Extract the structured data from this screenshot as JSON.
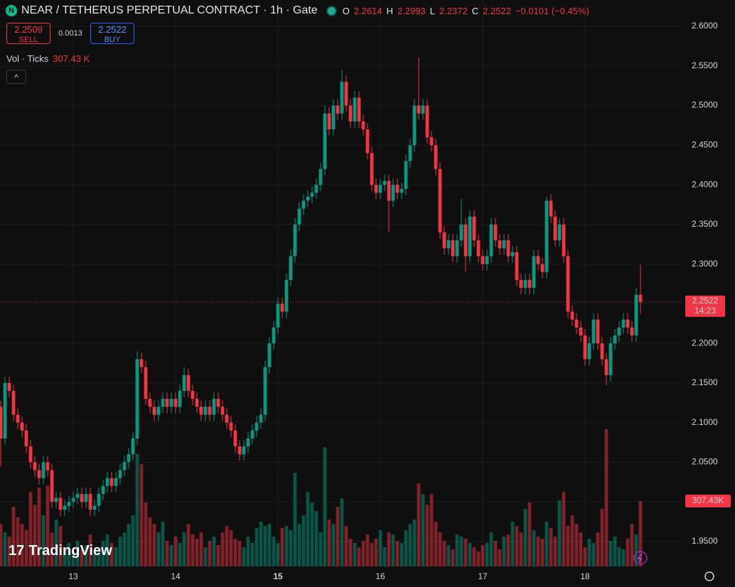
{
  "chart_data": {
    "type": "candlestick",
    "title": "NEAR / TETHERUS PERPETUAL CONTRACT · 1h · Gate",
    "ohlc_keys": [
      "O",
      "H",
      "L",
      "C"
    ],
    "change_label": "−0.0101 (−0.45%)",
    "sell": {
      "price": "2.2509",
      "label": "SELL"
    },
    "spread": "0.0013",
    "buy": {
      "price": "2.2522",
      "label": "BUY"
    },
    "volume_title": "Vol · Ticks",
    "last_volume_label": "307.43 K",
    "last_volume_axis_label": "307.43K",
    "countdown": "14:23",
    "logo": "TradingView",
    "up_color": "#089981",
    "down_color": "#f23645",
    "grid": true,
    "xlim": [
      -0.17,
      159.83
    ],
    "ylim": [
      1.9186,
      2.6332
    ],
    "volume_lim": [
      0,
      2663000
    ],
    "yticks": [
      {
        "value": 2.6,
        "label": "2.6000"
      },
      {
        "value": 2.55,
        "label": "2.5500"
      },
      {
        "value": 2.5,
        "label": "2.5000"
      },
      {
        "value": 2.45,
        "label": "2.4500"
      },
      {
        "value": 2.4,
        "label": "2.4000"
      },
      {
        "value": 2.35,
        "label": "2.3500"
      },
      {
        "value": 2.3,
        "label": "2.3000"
      },
      {
        "value": 2.25,
        "label": "2.2500"
      },
      {
        "value": 2.2,
        "label": "2.2000"
      },
      {
        "value": 2.15,
        "label": "2.1500"
      },
      {
        "value": 2.1,
        "label": "2.1000"
      },
      {
        "value": 2.05,
        "label": "2.0500"
      },
      {
        "value": 2.0,
        "label": "2.0000"
      },
      {
        "value": 1.95,
        "label": "1.9500"
      }
    ],
    "xticks": [
      {
        "value": 17,
        "label": "13"
      },
      {
        "value": 41,
        "label": "14"
      },
      {
        "value": 65,
        "label": "15"
      },
      {
        "value": 89,
        "label": "16"
      },
      {
        "value": 113,
        "label": "17"
      },
      {
        "value": 137,
        "label": "18"
      }
    ],
    "open": [
      2.12,
      2.08,
      2.15,
      2.14,
      2.11,
      2.1,
      2.09,
      2.07,
      2.05,
      2.04,
      2.03,
      2.05,
      2.04,
      2.0,
      2.005,
      1.99,
      1.995,
      2.0,
      2.005,
      2.01,
      2.0,
      2.01,
      1.99,
      1.995,
      2.01,
      2.02,
      2.03,
      2.02,
      2.03,
      2.04,
      2.05,
      2.06,
      2.08,
      2.18,
      2.17,
      2.13,
      2.12,
      2.11,
      2.12,
      2.13,
      2.12,
      2.13,
      2.12,
      2.14,
      2.16,
      2.14,
      2.13,
      2.12,
      2.11,
      2.12,
      2.11,
      2.13,
      2.12,
      2.11,
      2.1,
      2.09,
      2.07,
      2.06,
      2.07,
      2.08,
      2.09,
      2.1,
      2.11,
      2.17,
      2.2,
      2.22,
      2.25,
      2.24,
      2.28,
      2.31,
      2.35,
      2.37,
      2.38,
      2.385,
      2.39,
      2.4,
      2.42,
      2.49,
      2.47,
      2.5,
      2.49,
      2.53,
      2.5,
      2.48,
      2.51,
      2.48,
      2.47,
      2.44,
      2.4,
      2.39,
      2.4,
      2.405,
      2.38,
      2.4,
      2.39,
      2.395,
      2.43,
      2.45,
      2.5,
      2.49,
      2.5,
      2.46,
      2.45,
      2.42,
      2.34,
      2.32,
      2.33,
      2.31,
      2.33,
      2.35,
      2.31,
      2.36,
      2.33,
      2.31,
      2.3,
      2.31,
      2.35,
      2.33,
      2.32,
      2.33,
      2.31,
      2.315,
      2.28,
      2.27,
      2.28,
      2.27,
      2.31,
      2.3,
      2.29,
      2.38,
      2.36,
      2.33,
      2.35,
      2.31,
      2.24,
      2.23,
      2.22,
      2.21,
      2.18,
      2.2,
      2.23,
      2.2,
      2.18,
      2.16,
      2.2,
      2.21,
      2.22,
      2.23,
      2.22,
      2.21,
      2.2614
    ],
    "high": [
      2.128,
      2.158,
      2.158,
      2.148,
      2.118,
      2.108,
      2.098,
      2.078,
      2.058,
      2.048,
      2.058,
      2.058,
      2.048,
      2.013,
      2.013,
      2.003,
      2.008,
      2.013,
      2.018,
      2.018,
      2.018,
      2.018,
      2.003,
      2.018,
      2.028,
      2.038,
      2.038,
      2.038,
      2.048,
      2.058,
      2.068,
      2.088,
      2.19,
      2.188,
      2.178,
      2.138,
      2.128,
      2.128,
      2.138,
      2.138,
      2.138,
      2.138,
      2.148,
      2.17,
      2.168,
      2.148,
      2.138,
      2.128,
      2.128,
      2.128,
      2.138,
      2.138,
      2.128,
      2.118,
      2.108,
      2.098,
      2.078,
      2.078,
      2.088,
      2.098,
      2.108,
      2.118,
      2.178,
      2.208,
      2.228,
      2.258,
      2.258,
      2.288,
      2.318,
      2.358,
      2.378,
      2.388,
      2.393,
      2.398,
      2.408,
      2.428,
      2.5,
      2.498,
      2.508,
      2.508,
      2.545,
      2.538,
      2.508,
      2.518,
      2.518,
      2.488,
      2.478,
      2.448,
      2.408,
      2.408,
      2.413,
      2.413,
      2.408,
      2.408,
      2.403,
      2.438,
      2.458,
      2.508,
      2.561,
      2.508,
      2.508,
      2.468,
      2.458,
      2.428,
      2.348,
      2.338,
      2.338,
      2.338,
      2.382,
      2.358,
      2.368,
      2.368,
      2.338,
      2.318,
      2.318,
      2.358,
      2.358,
      2.338,
      2.338,
      2.338,
      2.323,
      2.323,
      2.288,
      2.288,
      2.288,
      2.318,
      2.318,
      2.308,
      2.385,
      2.388,
      2.368,
      2.358,
      2.358,
      2.318,
      2.248,
      2.238,
      2.228,
      2.218,
      2.208,
      2.238,
      2.238,
      2.208,
      2.188,
      2.208,
      2.218,
      2.228,
      2.238,
      2.238,
      2.228,
      2.27,
      2.2993
    ],
    "low": [
      2.045,
      2.072,
      2.132,
      2.102,
      2.092,
      2.082,
      2.062,
      2.042,
      2.032,
      2.022,
      2.022,
      2.032,
      1.992,
      1.992,
      1.982,
      1.982,
      1.987,
      1.992,
      1.997,
      1.992,
      1.992,
      1.982,
      1.982,
      1.987,
      2.002,
      2.012,
      2.012,
      2.012,
      2.022,
      2.032,
      2.042,
      2.052,
      2.072,
      2.162,
      2.122,
      2.112,
      2.102,
      2.102,
      2.112,
      2.112,
      2.112,
      2.112,
      2.112,
      2.132,
      2.132,
      2.122,
      2.112,
      2.102,
      2.102,
      2.102,
      2.102,
      2.112,
      2.102,
      2.092,
      2.082,
      2.062,
      2.052,
      2.052,
      2.062,
      2.072,
      2.082,
      2.092,
      2.102,
      2.162,
      2.192,
      2.212,
      2.232,
      2.232,
      2.272,
      2.302,
      2.342,
      2.362,
      2.372,
      2.377,
      2.382,
      2.392,
      2.412,
      2.462,
      2.462,
      2.482,
      2.482,
      2.492,
      2.472,
      2.472,
      2.472,
      2.462,
      2.432,
      2.392,
      2.382,
      2.382,
      2.392,
      2.34,
      2.372,
      2.382,
      2.382,
      2.387,
      2.422,
      2.442,
      2.482,
      2.482,
      2.452,
      2.442,
      2.412,
      2.332,
      2.312,
      2.312,
      2.302,
      2.302,
      2.322,
      2.29,
      2.302,
      2.322,
      2.302,
      2.292,
      2.292,
      2.302,
      2.322,
      2.312,
      2.312,
      2.302,
      2.302,
      2.272,
      2.262,
      2.262,
      2.262,
      2.262,
      2.292,
      2.282,
      2.282,
      2.352,
      2.322,
      2.322,
      2.302,
      2.232,
      2.222,
      2.212,
      2.202,
      2.172,
      2.172,
      2.192,
      2.192,
      2.172,
      2.147,
      2.152,
      2.192,
      2.202,
      2.212,
      2.212,
      2.202,
      2.202,
      2.2372
    ],
    "close": [
      2.08,
      2.15,
      2.14,
      2.11,
      2.1,
      2.09,
      2.07,
      2.05,
      2.04,
      2.03,
      2.05,
      2.04,
      2.0,
      2.005,
      1.99,
      1.995,
      2.0,
      2.005,
      2.01,
      2.0,
      2.01,
      1.99,
      1.995,
      2.01,
      2.02,
      2.03,
      2.02,
      2.03,
      2.04,
      2.05,
      2.06,
      2.08,
      2.18,
      2.17,
      2.13,
      2.12,
      2.11,
      2.12,
      2.13,
      2.12,
      2.13,
      2.12,
      2.14,
      2.16,
      2.14,
      2.13,
      2.12,
      2.11,
      2.12,
      2.11,
      2.13,
      2.12,
      2.11,
      2.1,
      2.09,
      2.07,
      2.06,
      2.07,
      2.08,
      2.09,
      2.1,
      2.11,
      2.17,
      2.2,
      2.22,
      2.25,
      2.24,
      2.28,
      2.31,
      2.35,
      2.37,
      2.38,
      2.385,
      2.39,
      2.4,
      2.42,
      2.49,
      2.47,
      2.5,
      2.49,
      2.53,
      2.5,
      2.48,
      2.51,
      2.48,
      2.47,
      2.44,
      2.4,
      2.39,
      2.4,
      2.405,
      2.38,
      2.4,
      2.39,
      2.395,
      2.43,
      2.45,
      2.5,
      2.49,
      2.5,
      2.46,
      2.45,
      2.42,
      2.34,
      2.32,
      2.33,
      2.31,
      2.33,
      2.35,
      2.31,
      2.36,
      2.33,
      2.31,
      2.3,
      2.31,
      2.35,
      2.33,
      2.32,
      2.33,
      2.31,
      2.315,
      2.28,
      2.27,
      2.28,
      2.27,
      2.31,
      2.3,
      2.29,
      2.38,
      2.36,
      2.33,
      2.35,
      2.31,
      2.24,
      2.23,
      2.22,
      2.21,
      2.18,
      2.2,
      2.23,
      2.2,
      2.18,
      2.16,
      2.2,
      2.21,
      2.22,
      2.23,
      2.22,
      2.21,
      2.2614,
      2.2522
    ],
    "volume": [
      200000,
      160000,
      140000,
      280000,
      230000,
      200000,
      170000,
      350000,
      290000,
      370000,
      240000,
      380000,
      160000,
      220000,
      190000,
      90000,
      110000,
      70000,
      120000,
      80000,
      100000,
      150000,
      60000,
      80000,
      120000,
      150000,
      110000,
      90000,
      140000,
      160000,
      200000,
      240000,
      530000,
      480000,
      300000,
      230000,
      200000,
      160000,
      210000,
      120000,
      100000,
      140000,
      110000,
      160000,
      200000,
      150000,
      130000,
      160000,
      90000,
      120000,
      140000,
      100000,
      160000,
      190000,
      170000,
      130000,
      120000,
      90000,
      140000,
      110000,
      180000,
      210000,
      190000,
      200000,
      140000,
      110000,
      180000,
      190000,
      170000,
      440000,
      200000,
      240000,
      350000,
      300000,
      260000,
      160000,
      560000,
      220000,
      200000,
      280000,
      320000,
      190000,
      130000,
      110000,
      90000,
      120000,
      150000,
      110000,
      130000,
      170000,
      90000,
      160000,
      150000,
      120000,
      110000,
      170000,
      200000,
      220000,
      390000,
      340000,
      290000,
      340000,
      210000,
      160000,
      120000,
      100000,
      80000,
      150000,
      140000,
      130000,
      110000,
      90000,
      70000,
      100000,
      110000,
      160000,
      120000,
      80000,
      140000,
      150000,
      210000,
      190000,
      160000,
      270000,
      300000,
      170000,
      140000,
      130000,
      210000,
      180000,
      140000,
      310000,
      350000,
      190000,
      240000,
      200000,
      160000,
      90000,
      130000,
      110000,
      160000,
      270000,
      645000,
      120000,
      140000,
      90000,
      80000,
      130000,
      200000,
      150000,
      307430
    ]
  }
}
